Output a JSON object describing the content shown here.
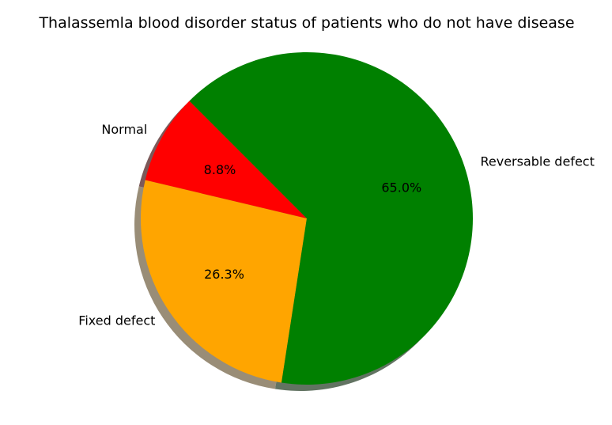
{
  "chart_data": {
    "type": "pie",
    "title": "Thalassemla blood disorder status of patients who do not have disease",
    "start_angle": 135,
    "direction": "counterclockwise",
    "shadow": true,
    "slices": [
      {
        "label": "Normal",
        "value": 8.8,
        "pct_label": "8.8%",
        "color": "#ff0000"
      },
      {
        "label": "Fixed defect",
        "value": 26.3,
        "pct_label": "26.3%",
        "color": "#ffa500"
      },
      {
        "label": "Reversable defect",
        "value": 65.0,
        "pct_label": "65.0%",
        "color": "#008000"
      }
    ]
  }
}
